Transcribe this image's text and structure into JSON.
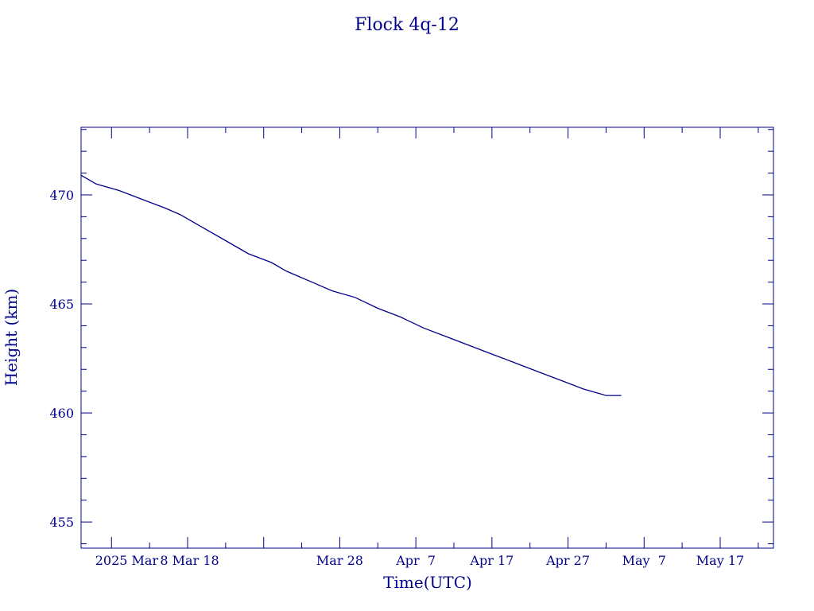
{
  "chart_data": {
    "type": "line",
    "title": "Flock 4q-12",
    "xlabel": "Time(UTC)",
    "ylabel": "Height (km)",
    "x_range": [
      "2025-02-22",
      "2025-05-24"
    ],
    "ylim": [
      453.8,
      473.1
    ],
    "x_tick_labels": [
      {
        "date": "2025-02-28",
        "label": "2025 Mar"
      },
      {
        "date": "2025-03-08",
        "label": " 8 Mar 18"
      },
      {
        "date": "2025-03-28",
        "label": "Mar 28"
      },
      {
        "date": "2025-04-07",
        "label": "Apr  7"
      },
      {
        "date": "2025-04-17",
        "label": "Apr 17"
      },
      {
        "date": "2025-04-27",
        "label": "Apr 27"
      },
      {
        "date": "2025-05-07",
        "label": "May  7"
      },
      {
        "date": "2025-05-17",
        "label": "May 17"
      }
    ],
    "y_ticks": [
      455,
      460,
      465,
      470
    ],
    "series": [
      {
        "color": "#00008b",
        "x": [
          "2025-02-22",
          "2025-02-24",
          "2025-02-27",
          "2025-03-02",
          "2025-03-05",
          "2025-03-07",
          "2025-03-10",
          "2025-03-13",
          "2025-03-16",
          "2025-03-19",
          "2025-03-21",
          "2025-03-23",
          "2025-03-25",
          "2025-03-27",
          "2025-03-30",
          "2025-04-02",
          "2025-04-05",
          "2025-04-08",
          "2025-04-11",
          "2025-04-14",
          "2025-04-17",
          "2025-04-20",
          "2025-04-23",
          "2025-04-26",
          "2025-04-29",
          "2025-05-02",
          "2025-05-04"
        ],
        "y": [
          470.9,
          470.5,
          470.2,
          469.8,
          469.4,
          469.1,
          468.5,
          467.9,
          467.3,
          466.9,
          466.5,
          466.2,
          465.9,
          465.6,
          465.3,
          464.8,
          464.4,
          463.9,
          463.5,
          463.1,
          462.7,
          462.3,
          461.9,
          461.5,
          461.1,
          460.8,
          460.8
        ]
      }
    ]
  }
}
